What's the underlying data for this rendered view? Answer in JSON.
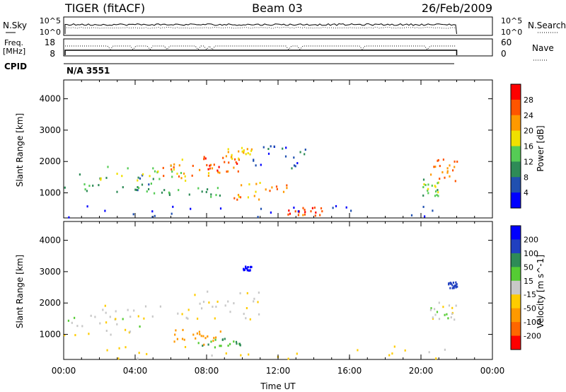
{
  "header": {
    "station": "TIGER (fitACF)",
    "beam": "Beam 03",
    "date": "26/Feb/2009"
  },
  "noise_panel": {
    "left_label": "N.Sky",
    "right_label": "N.Search",
    "y_ticks": [
      "10^5",
      "10^0"
    ]
  },
  "freq_panel": {
    "left_label_line1": "Freq.",
    "left_label_line2": "[MHz]",
    "left_ticks": [
      "18",
      "8"
    ],
    "right_label": "Nave",
    "right_ticks": [
      "60",
      "0"
    ]
  },
  "cpid": {
    "label": "CPID",
    "value": "N/A 3551"
  },
  "colors": {
    "power_scale": [
      "#0000ff",
      "#2050b0",
      "#2e8b57",
      "#55cc55",
      "#f0e000",
      "#ff9900",
      "#ff5500",
      "#ff0000"
    ],
    "velocity_scale": [
      "#ff0000",
      "#ff6600",
      "#ff9900",
      "#ffcc00",
      "#c8c8c8",
      "#55cc33",
      "#2e8b57",
      "#2040c0",
      "#0000ff"
    ],
    "background": "#ffffff"
  },
  "chart_data": [
    {
      "type": "heatmap",
      "name": "power",
      "xlabel": "",
      "ylabel": "Slant Range [km]",
      "colorbar_label": "Power [dB]",
      "colorbar_ticks": [
        "28",
        "24",
        "20",
        "16",
        "12",
        "8",
        "4"
      ],
      "clim": [
        0,
        32
      ],
      "xlim": [
        0,
        24
      ],
      "ylim": [
        200,
        4600
      ],
      "y_ticks": [
        "4000",
        "3000",
        "2000",
        "1000"
      ],
      "y_tick_values": [
        4000,
        3000,
        2000,
        1000
      ],
      "data_until_hour": 22,
      "regions": [
        {
          "t": [
            0,
            5
          ],
          "r": [
            1000,
            1700
          ],
          "p": 10
        },
        {
          "t": [
            2,
            7
          ],
          "r": [
            1300,
            1900
          ],
          "p": 16
        },
        {
          "t": [
            5,
            9.5
          ],
          "r": [
            1500,
            2100
          ],
          "p": 22
        },
        {
          "t": [
            7,
            9.8
          ],
          "r": [
            1700,
            2200
          ],
          "p": 26
        },
        {
          "t": [
            9,
            10.5
          ],
          "r": [
            2100,
            2500
          ],
          "p": 20
        },
        {
          "t": [
            9.5,
            12.5
          ],
          "r": [
            800,
            1400
          ],
          "p": 22
        },
        {
          "t": [
            12.5,
            14.5
          ],
          "r": [
            300,
            600
          ],
          "p": 27
        },
        {
          "t": [
            4,
            9
          ],
          "r": [
            900,
            1200
          ],
          "p": 12
        },
        {
          "t": [
            10.5,
            13.5
          ],
          "r": [
            1800,
            2600
          ],
          "p": 6
        },
        {
          "t": [
            20.5,
            22
          ],
          "r": [
            1400,
            2100
          ],
          "p": 24
        },
        {
          "t": [
            20,
            21
          ],
          "r": [
            900,
            1500
          ],
          "p": 14
        },
        {
          "t": [
            0,
            22
          ],
          "r": [
            250,
            650
          ],
          "p": 4
        }
      ]
    },
    {
      "type": "heatmap",
      "name": "velocity",
      "xlabel": "Time UT",
      "ylabel": "Slant Range [km]",
      "colorbar_label": "Velocity [m s^-1]",
      "colorbar_ticks": [
        "200",
        "100",
        "50",
        "15",
        "-15",
        "-50",
        "-100",
        "-200"
      ],
      "clim": [
        -250,
        250
      ],
      "xlim": [
        0,
        24
      ],
      "ylim": [
        200,
        4600
      ],
      "x_ticks": [
        "00:00",
        "04:00",
        "08:00",
        "12:00",
        "16:00",
        "20:00",
        "00:00"
      ],
      "x_tick_values": [
        0,
        4,
        8,
        12,
        16,
        20,
        24
      ],
      "y_ticks": [
        "4000",
        "3000",
        "2000",
        "1000"
      ],
      "y_tick_values": [
        4000,
        3000,
        2000,
        1000
      ],
      "data_until_hour": 22,
      "regions": [
        {
          "t": [
            0,
            5
          ],
          "r": [
            1000,
            1700
          ],
          "v": 0
        },
        {
          "t": [
            2,
            9.5
          ],
          "r": [
            1400,
            2100
          ],
          "v": -5
        },
        {
          "t": [
            7,
            11
          ],
          "r": [
            1500,
            2400
          ],
          "v": -10
        },
        {
          "t": [
            6,
            9
          ],
          "r": [
            700,
            1200
          ],
          "v": -80
        },
        {
          "t": [
            7.5,
            10
          ],
          "r": [
            600,
            900
          ],
          "v": 60
        },
        {
          "t": [
            10,
            10.5
          ],
          "r": [
            3000,
            3200
          ],
          "v": 220
        },
        {
          "t": [
            20.5,
            22
          ],
          "r": [
            1500,
            2100
          ],
          "v": 0
        },
        {
          "t": [
            21.5,
            22
          ],
          "r": [
            2500,
            2700
          ],
          "v": 150
        },
        {
          "t": [
            0,
            22
          ],
          "r": [
            250,
            650
          ],
          "v": -30
        }
      ]
    }
  ]
}
